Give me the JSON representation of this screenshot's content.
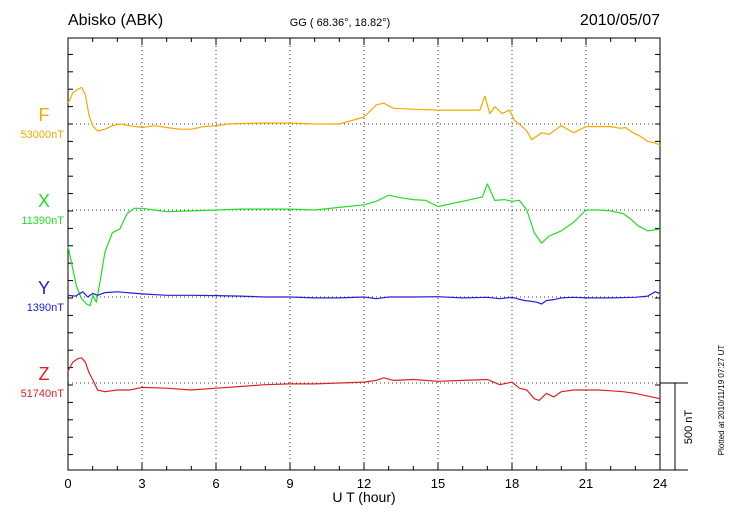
{
  "chart_data": {
    "type": "line",
    "title": "Abisko (ABK)",
    "subtitle": "GG ( 68.36°,  18.82°)",
    "date": "2010/05/07",
    "xlabel": "U T (hour)",
    "xlim": [
      0,
      24
    ],
    "xticks": [
      "0",
      "3",
      "6",
      "9",
      "12",
      "15",
      "18",
      "21",
      "24"
    ],
    "grid": true,
    "scale_bar": {
      "label": "500 nT",
      "value_nT": 500
    },
    "footer_note": "Plotted at 2010/11/19 07:27 UT",
    "series": [
      {
        "name": "F",
        "baseline_label": "53000nT",
        "baseline_nT": 53000,
        "color": "#f5a800",
        "x": [
          0,
          0.2,
          0.4,
          0.55,
          0.7,
          0.85,
          1.0,
          1.2,
          1.5,
          1.8,
          2.1,
          2.5,
          3.0,
          3.5,
          4.0,
          4.5,
          5.0,
          5.5,
          6.0,
          6.5,
          7.0,
          8.0,
          9.0,
          10.0,
          11.0,
          12.0,
          12.5,
          12.8,
          13.2,
          14.0,
          15.0,
          16.0,
          16.7,
          16.9,
          17.1,
          17.3,
          17.6,
          17.9,
          18.1,
          18.3,
          18.6,
          18.8,
          19.0,
          19.2,
          19.5,
          20.0,
          20.5,
          21.0,
          21.5,
          22.0,
          22.4,
          22.6,
          22.9,
          23.2,
          23.5,
          23.8,
          24.0
        ],
        "values": [
          53120,
          53180,
          53200,
          53210,
          53170,
          53050,
          52990,
          52960,
          52970,
          52990,
          53000,
          52990,
          52980,
          52990,
          52980,
          52970,
          52970,
          52985,
          52990,
          53000,
          53003,
          53005,
          53005,
          53000,
          53000,
          53040,
          53110,
          53120,
          53090,
          53085,
          53080,
          53080,
          53080,
          53160,
          53060,
          53100,
          53060,
          53080,
          53020,
          53000,
          52960,
          52910,
          52930,
          52950,
          52940,
          52990,
          52950,
          52985,
          52985,
          52985,
          52975,
          52980,
          52950,
          52930,
          52900,
          52890,
          52880
        ]
      },
      {
        "name": "X",
        "baseline_label": "11390nT",
        "baseline_nT": 11390,
        "color": "#22dd22",
        "x": [
          0,
          0.15,
          0.35,
          0.55,
          0.75,
          0.9,
          1.0,
          1.15,
          1.3,
          1.5,
          1.8,
          2.1,
          2.4,
          2.7,
          3.0,
          3.5,
          4.0,
          5.0,
          6.0,
          7.0,
          8.0,
          9.0,
          10.0,
          11.0,
          12.0,
          12.5,
          13.0,
          13.5,
          14.0,
          14.5,
          15.0,
          16.0,
          16.8,
          17.0,
          17.3,
          17.7,
          18.0,
          18.3,
          18.6,
          18.9,
          19.2,
          19.5,
          20.0,
          20.5,
          21.0,
          21.5,
          22.0,
          22.5,
          22.8,
          23.1,
          23.5,
          24.0
        ],
        "values": [
          11180,
          11080,
          10950,
          10880,
          10850,
          10840,
          10900,
          10860,
          10980,
          11150,
          11260,
          11280,
          11370,
          11400,
          11400,
          11390,
          11380,
          11385,
          11390,
          11395,
          11395,
          11395,
          11390,
          11405,
          11420,
          11440,
          11475,
          11460,
          11450,
          11445,
          11410,
          11440,
          11465,
          11540,
          11445,
          11450,
          11440,
          11445,
          11390,
          11260,
          11200,
          11240,
          11270,
          11320,
          11390,
          11390,
          11385,
          11370,
          11340,
          11300,
          11270,
          11280
        ]
      },
      {
        "name": "Y",
        "baseline_label": "1390nT",
        "baseline_nT": 1390,
        "color": "#2222dd",
        "x": [
          0,
          0.3,
          0.6,
          0.8,
          1.0,
          1.2,
          1.5,
          2.0,
          3.0,
          4.0,
          5.0,
          6.0,
          7.0,
          8.0,
          9.0,
          10.0,
          11.0,
          12.0,
          12.5,
          13.0,
          14.0,
          15.0,
          16.0,
          17.0,
          17.5,
          18.0,
          18.5,
          18.8,
          19.0,
          19.2,
          19.4,
          19.7,
          20.0,
          20.5,
          21.0,
          22.0,
          23.0,
          23.5,
          23.8,
          24.0
        ],
        "values": [
          1400,
          1395,
          1420,
          1390,
          1410,
          1400,
          1415,
          1420,
          1408,
          1400,
          1400,
          1398,
          1395,
          1390,
          1390,
          1385,
          1385,
          1390,
          1380,
          1390,
          1390,
          1392,
          1385,
          1388,
          1380,
          1388,
          1370,
          1365,
          1360,
          1350,
          1370,
          1375,
          1385,
          1388,
          1385,
          1385,
          1388,
          1395,
          1420,
          1410
        ]
      },
      {
        "name": "Z",
        "baseline_label": "51740nT",
        "baseline_nT": 51740,
        "color": "#dd2222",
        "x": [
          0,
          0.2,
          0.4,
          0.55,
          0.7,
          0.85,
          1.0,
          1.2,
          1.5,
          2.0,
          2.5,
          3.0,
          4.0,
          5.0,
          6.0,
          7.0,
          8.0,
          9.0,
          10.0,
          11.0,
          12.0,
          12.5,
          12.8,
          13.2,
          14.0,
          15.0,
          16.0,
          17.0,
          17.5,
          18.0,
          18.3,
          18.6,
          18.9,
          19.1,
          19.4,
          19.7,
          20.0,
          20.5,
          21.0,
          21.5,
          22.0,
          22.5,
          23.0,
          23.5,
          24.0
        ],
        "values": [
          51810,
          51860,
          51880,
          51885,
          51860,
          51800,
          51760,
          51700,
          51690,
          51700,
          51700,
          51715,
          51710,
          51700,
          51710,
          51720,
          51730,
          51735,
          51735,
          51740,
          51745,
          51755,
          51770,
          51755,
          51760,
          51750,
          51755,
          51760,
          51730,
          51745,
          51710,
          51700,
          51650,
          51640,
          51680,
          51660,
          51690,
          51700,
          51700,
          51700,
          51695,
          51690,
          51680,
          51665,
          51650
        ]
      }
    ]
  }
}
